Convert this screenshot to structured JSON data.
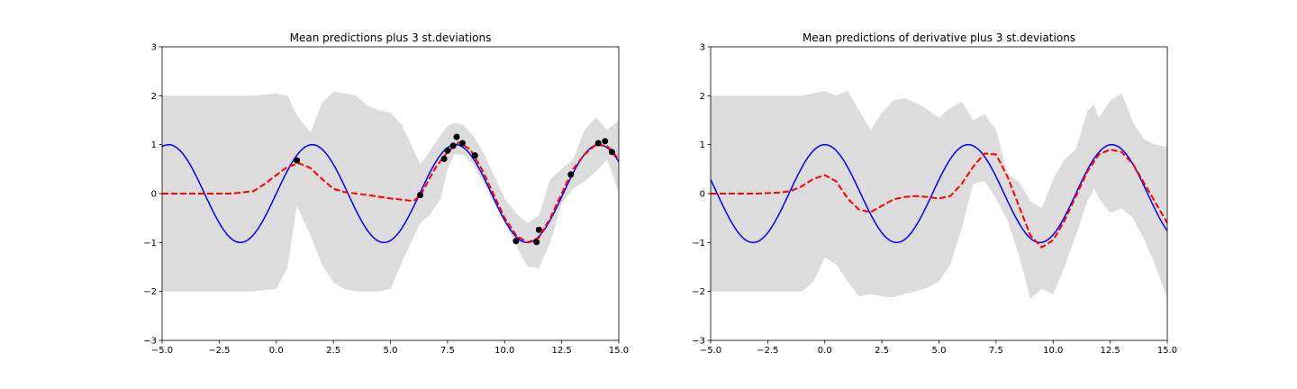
{
  "chart_data": [
    {
      "type": "line",
      "title": "Mean predictions plus 3 st.deviations",
      "xlabel": "",
      "ylabel": "",
      "xlim": [
        -5.0,
        15.0
      ],
      "ylim": [
        -3,
        3
      ],
      "xticks": [
        "−5.0",
        "−2.5",
        "0.0",
        "2.5",
        "5.0",
        "7.5",
        "10.0",
        "12.5",
        "15.0"
      ],
      "yticks": [
        "−3",
        "−2",
        "−1",
        "0",
        "1",
        "2",
        "3"
      ],
      "grid": false,
      "colors": {
        "band": "#dcdcdc",
        "truth": "#0000ff",
        "mean": "#ff0000",
        "points": "#000000"
      },
      "band": {
        "x": [
          -5,
          -3,
          -2,
          -1,
          0,
          0.5,
          0.9,
          1.5,
          2,
          2.5,
          3,
          3.5,
          4,
          4.5,
          5,
          5.5,
          6,
          6.3,
          6.7,
          7.2,
          7.5,
          7.8,
          8.2,
          8.6,
          9,
          9.5,
          10,
          10.5,
          11,
          11.5,
          12,
          12.5,
          13,
          13.5,
          14,
          14.5,
          15
        ],
        "upper": [
          2.0,
          2.0,
          2.0,
          2.0,
          2.05,
          2.0,
          1.6,
          1.25,
          1.85,
          2.08,
          2.05,
          2.0,
          1.8,
          1.7,
          1.65,
          1.4,
          0.9,
          0.6,
          0.85,
          1.2,
          1.38,
          1.45,
          1.4,
          1.2,
          0.9,
          0.4,
          -0.1,
          -0.4,
          -0.6,
          -0.45,
          0.3,
          0.5,
          0.7,
          1.3,
          1.55,
          1.3,
          1.5
        ],
        "lower": [
          -2.0,
          -2.0,
          -2.0,
          -2.0,
          -1.95,
          -1.5,
          -0.25,
          -0.85,
          -1.45,
          -1.82,
          -1.95,
          -2.0,
          -2.0,
          -2.0,
          -1.95,
          -1.4,
          -0.9,
          -0.6,
          -0.45,
          -0.1,
          0.5,
          0.8,
          0.8,
          0.6,
          0.3,
          -0.15,
          -0.6,
          -1.05,
          -1.5,
          -1.52,
          -1.0,
          -0.2,
          0.1,
          0.25,
          0.45,
          0.7,
          0.0
        ]
      },
      "true_curve": {
        "function": "sin(x)"
      },
      "mean_curve": {
        "x": [
          -5,
          -3,
          -2,
          -1,
          -0.5,
          0,
          0.5,
          1,
          1.5,
          2,
          2.5,
          3,
          3.5,
          4,
          5,
          6,
          6.3,
          6.7,
          7,
          7.5,
          8,
          8.5,
          9,
          9.5,
          10,
          10.5,
          11,
          11.5,
          12,
          12.5,
          13,
          13.5,
          14,
          14.5,
          15
        ],
        "y": [
          0.0,
          0.0,
          0.0,
          0.05,
          0.2,
          0.38,
          0.55,
          0.62,
          0.52,
          0.3,
          0.1,
          0.03,
          0.0,
          -0.03,
          -0.1,
          -0.15,
          -0.05,
          0.3,
          0.55,
          0.85,
          1.05,
          0.9,
          0.5,
          0.0,
          -0.5,
          -0.85,
          -1.0,
          -0.9,
          -0.5,
          0.0,
          0.5,
          0.8,
          1.0,
          0.97,
          0.7
        ]
      },
      "points": {
        "x": [
          0.9,
          6.3,
          7.35,
          7.5,
          7.75,
          7.9,
          8.15,
          8.7,
          10.5,
          11.4,
          11.5,
          12.9,
          14.1,
          14.4,
          14.7
        ],
        "y": [
          0.68,
          -0.03,
          0.71,
          0.88,
          0.98,
          1.16,
          1.03,
          0.78,
          -0.97,
          -0.99,
          -0.74,
          0.39,
          1.03,
          1.07,
          0.85
        ]
      }
    },
    {
      "type": "line",
      "title": "Mean predictions of derivative plus 3 st.deviations",
      "xlabel": "",
      "ylabel": "",
      "xlim": [
        -5.0,
        15.0
      ],
      "ylim": [
        -3,
        3
      ],
      "xticks": [
        "−5.0",
        "−2.5",
        "0.0",
        "2.5",
        "5.0",
        "7.5",
        "10.0",
        "12.5",
        "15.0"
      ],
      "yticks": [
        "−3",
        "−2",
        "−1",
        "0",
        "1",
        "2",
        "3"
      ],
      "grid": false,
      "colors": {
        "band": "#dcdcdc",
        "truth": "#0000ff",
        "mean": "#ff0000"
      },
      "band": {
        "x": [
          -5,
          -3,
          -2,
          -1,
          -0.5,
          0,
          0.5,
          1,
          1.5,
          2,
          2.5,
          3,
          3.5,
          4,
          4.5,
          5,
          5.5,
          6,
          6.5,
          7,
          7.5,
          8,
          8.5,
          9,
          9.5,
          10,
          10.5,
          11,
          11.5,
          11.8,
          12,
          12.5,
          13,
          13.5,
          14,
          14.5,
          15
        ],
        "upper": [
          2.0,
          2.0,
          2.0,
          2.0,
          2.05,
          2.1,
          2.0,
          2.1,
          1.7,
          1.3,
          1.65,
          1.9,
          1.95,
          1.85,
          1.72,
          1.55,
          1.75,
          1.88,
          1.5,
          1.62,
          1.3,
          0.4,
          0.25,
          -0.15,
          -0.3,
          0.3,
          0.7,
          0.9,
          1.7,
          1.82,
          1.55,
          1.9,
          2.05,
          1.45,
          1.1,
          1.0,
          0.95
        ],
        "lower": [
          -2.0,
          -2.0,
          -2.0,
          -2.0,
          -1.8,
          -1.3,
          -1.45,
          -1.8,
          -2.1,
          -2.05,
          -2.1,
          -2.12,
          -2.05,
          -2.0,
          -1.92,
          -1.8,
          -1.45,
          -0.7,
          0.2,
          0.25,
          -0.1,
          -0.55,
          -1.25,
          -2.15,
          -1.95,
          -2.05,
          -1.5,
          -0.85,
          -0.15,
          0.1,
          -0.1,
          -0.4,
          -0.3,
          -0.5,
          -0.95,
          -1.5,
          -2.15
        ]
      },
      "true_curve": {
        "function": "cos(x)"
      },
      "mean_curve": {
        "x": [
          -5,
          -3,
          -2,
          -1.5,
          -1,
          -0.5,
          0,
          0.5,
          1,
          1.5,
          2,
          2.5,
          3,
          3.5,
          4,
          4.5,
          5,
          5.5,
          6,
          6.5,
          7,
          7.5,
          8,
          8.5,
          9,
          9.5,
          10,
          10.5,
          11,
          11.5,
          12,
          12.5,
          13,
          13.5,
          14,
          14.5,
          15
        ],
        "y": [
          0.0,
          0.0,
          0.02,
          0.05,
          0.15,
          0.3,
          0.38,
          0.25,
          -0.1,
          -0.33,
          -0.38,
          -0.25,
          -0.12,
          -0.07,
          -0.05,
          -0.07,
          -0.1,
          -0.05,
          0.2,
          0.55,
          0.82,
          0.8,
          0.35,
          -0.25,
          -0.85,
          -1.1,
          -0.95,
          -0.55,
          -0.05,
          0.45,
          0.8,
          0.9,
          0.85,
          0.6,
          0.2,
          -0.2,
          -0.6
        ]
      }
    }
  ]
}
